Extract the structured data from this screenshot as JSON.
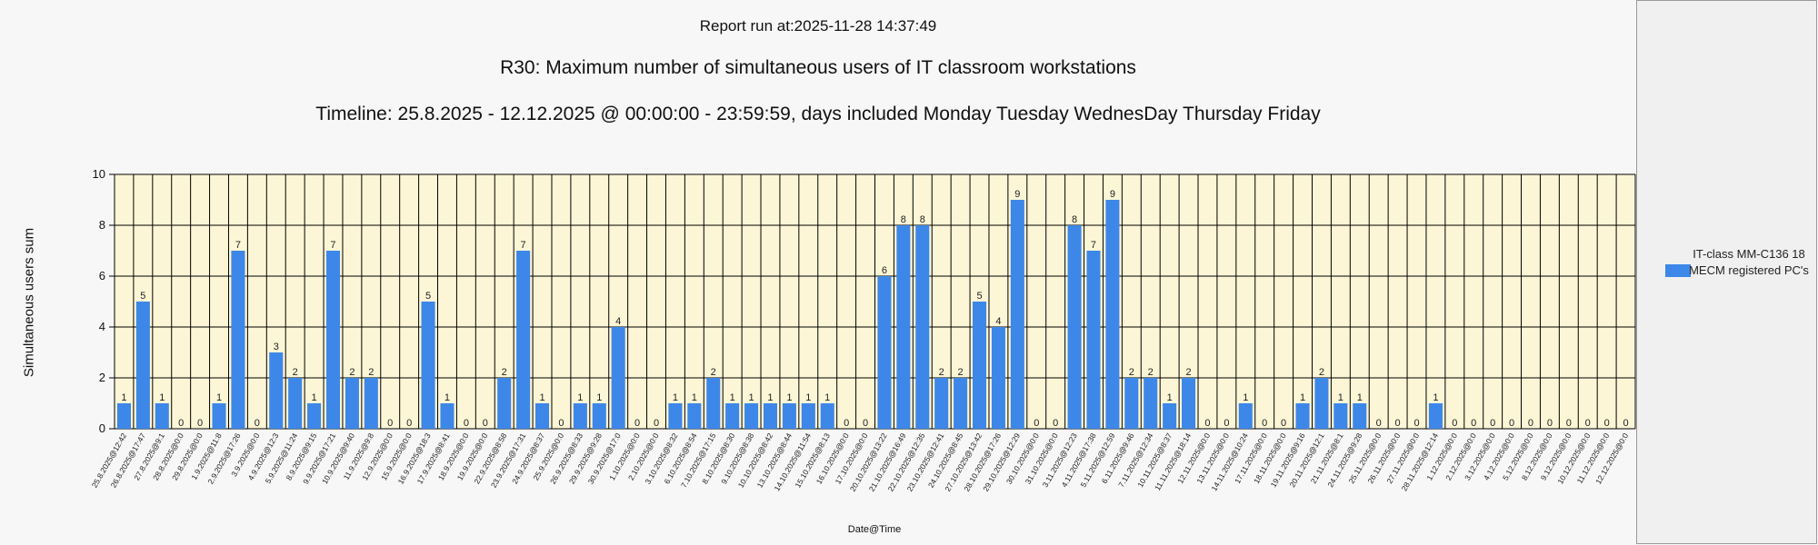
{
  "header": {
    "report_time": "Report run at:2025-11-28 14:37:49"
  },
  "legend": {
    "label": "IT-class MM-C136 18 MECM registered PC's"
  },
  "colors": {
    "bar": "#3d87e8",
    "plot_background": "#fdf6d6",
    "grid": "#000000"
  },
  "chart_data": {
    "type": "bar",
    "title": "R30: Maximum number of simultaneous users of IT classroom workstations",
    "subtitle": "Timeline: 25.8.2025  - 12.12.2025  @  00:00:00 -  23:59:59, days included Monday Tuesday WednesDay Thursday Friday",
    "xlabel": "Date@Time",
    "ylabel": "Simultaneous users sum",
    "ylim": [
      0,
      10
    ],
    "yticks": [
      0,
      2,
      4,
      6,
      8,
      10
    ],
    "grid": true,
    "legend_position": "right",
    "categories": [
      "25.8.2025@12:42",
      "26.8.2025@17:47",
      "27.8.2025@9:1",
      "28.8.2025@0:0",
      "29.8.2025@0:0",
      "1.9.2025@11:8",
      "2.9.2025@17:26",
      "3.9.2025@0:0",
      "4.9.2025@12:3",
      "5.9.2025@11:24",
      "8.9.2025@9:15",
      "9.9.2025@17:21",
      "10.9.2025@9:40",
      "11.9.2025@9:8",
      "12.9.2025@0:0",
      "15.9.2025@0:0",
      "16.9.2025@18:3",
      "17.9.2025@8:41",
      "18.9.2025@0:0",
      "19.9.2025@0:0",
      "22.9.2025@8:58",
      "23.9.2025@17:31",
      "24.9.2025@8:37",
      "25.9.2025@0:0",
      "26.9.2025@8:33",
      "29.9.2025@9:28",
      "30.9.2025@17:0",
      "1.10.2025@0:0",
      "2.10.2025@0:0",
      "3.10.2025@8:32",
      "6.10.2025@8:54",
      "7.10.2025@17:15",
      "8.10.2025@8:30",
      "9.10.2025@8:38",
      "10.10.2025@8:42",
      "13.10.2025@8:44",
      "14.10.2025@11:54",
      "15.10.2025@8:13",
      "16.10.2025@0:0",
      "17.10.2025@0:0",
      "20.10.2025@13:22",
      "21.10.2025@16:49",
      "22.10.2025@12:35",
      "23.10.2025@12:41",
      "24.10.2025@8:45",
      "27.10.2025@13:42",
      "28.10.2025@17:26",
      "29.10.2025@12:29",
      "30.10.2025@0:0",
      "31.10.2025@0:0",
      "3.11.2025@12:23",
      "4.11.2025@17:38",
      "5.11.2025@12:59",
      "6.11.2025@9:46",
      "7.11.2025@12:34",
      "10.11.2025@8:37",
      "11.11.2025@18:14",
      "12.11.2025@0:0",
      "13.11.2025@0:0",
      "14.11.2025@10:24",
      "17.11.2025@0:0",
      "18.11.2025@0:0",
      "19.11.2025@9:16",
      "20.11.2025@12:1",
      "21.11.2025@8:1",
      "24.11.2025@9:28",
      "25.11.2025@0:0",
      "26.11.2025@0:0",
      "27.11.2025@0:0",
      "28.11.2025@12:14",
      "1.12.2025@0:0",
      "2.12.2025@0:0",
      "3.12.2025@0:0",
      "4.12.2025@0:0",
      "5.12.2025@0:0",
      "8.12.2025@0:0",
      "9.12.2025@0:0",
      "10.12.2025@0:0",
      "11.12.2025@0:0",
      "12.12.2025@0:0"
    ],
    "series": [
      {
        "name": "IT-class MM-C136 18 MECM registered PC's",
        "values": [
          1,
          5,
          1,
          0,
          0,
          1,
          7,
          0,
          3,
          2,
          1,
          7,
          2,
          2,
          0,
          0,
          5,
          1,
          0,
          0,
          2,
          7,
          1,
          0,
          1,
          1,
          4,
          0,
          0,
          1,
          1,
          2,
          1,
          1,
          1,
          1,
          1,
          1,
          0,
          0,
          6,
          8,
          8,
          2,
          2,
          5,
          4,
          9,
          0,
          0,
          8,
          7,
          9,
          2,
          2,
          1,
          2,
          0,
          0,
          1,
          0,
          0,
          1,
          2,
          1,
          1,
          0,
          0,
          0,
          1,
          0,
          0,
          0,
          0,
          0,
          0,
          0,
          0,
          0,
          0
        ]
      }
    ]
  }
}
